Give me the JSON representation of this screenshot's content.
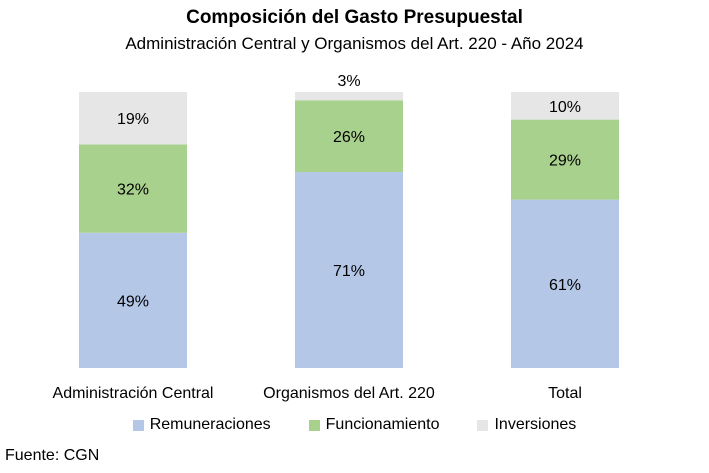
{
  "chart_data": {
    "type": "bar",
    "stacked": true,
    "title": "Composición del Gasto Presupuestal",
    "subtitle": "Administración Central y Organismos del Art. 220 - Año 2024",
    "categories": [
      "Administración Central",
      "Organismos del Art. 220",
      "Total"
    ],
    "series": [
      {
        "name": "Remuneraciones",
        "values": [
          49,
          71,
          61
        ],
        "labels": [
          "49%",
          "71%",
          "61%"
        ],
        "color": "#b4c7e7"
      },
      {
        "name": "Funcionamiento",
        "values": [
          32,
          26,
          29
        ],
        "labels": [
          "32%",
          "26%",
          "29%"
        ],
        "color": "#a9d18e"
      },
      {
        "name": "Inversiones",
        "values": [
          19,
          3,
          10
        ],
        "labels": [
          "19%",
          "3%",
          "10%"
        ],
        "color": "#e7e6e6"
      }
    ],
    "ylim": [
      0,
      100
    ],
    "legend_position": "bottom",
    "grid": false
  },
  "source": "Fuente: CGN"
}
